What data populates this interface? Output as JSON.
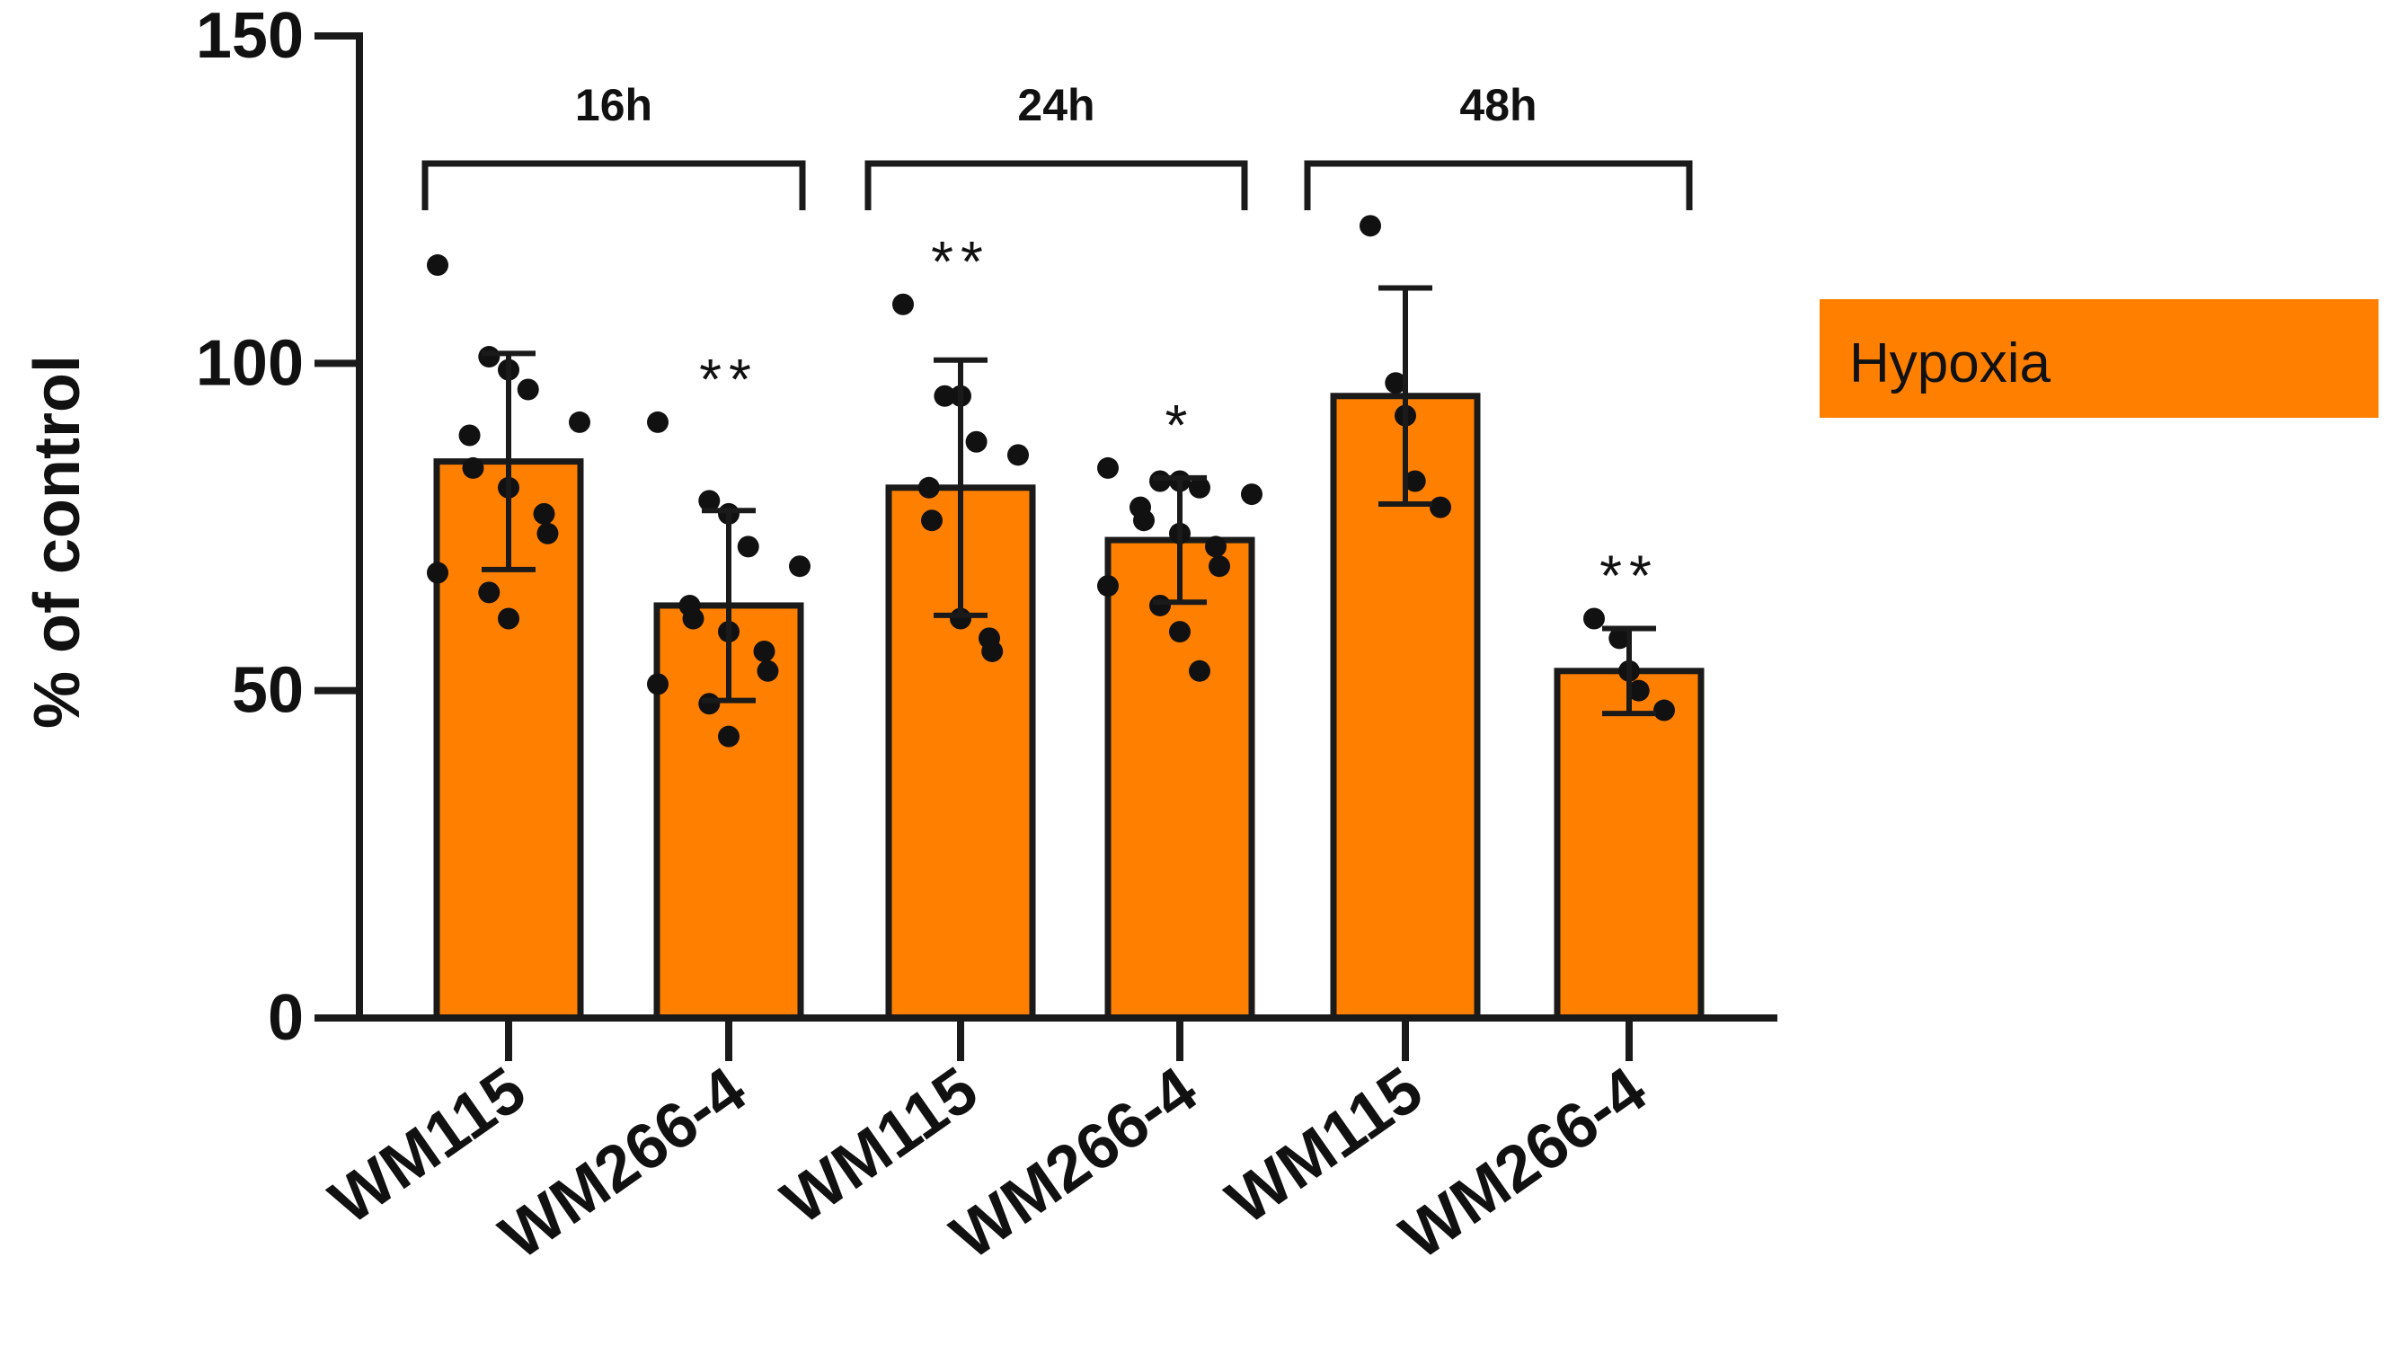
{
  "chart_data": {
    "type": "bar",
    "title": "",
    "xlabel": "",
    "ylabel": "% of control",
    "ylim": [
      0,
      150
    ],
    "yticks": [
      0,
      50,
      100,
      150
    ],
    "yticklabels": [
      "0",
      "50",
      "100",
      "150"
    ],
    "grid": false,
    "categories": [
      "WM115",
      "WM266-4",
      "WM115",
      "WM266-4",
      "WM115",
      "WM266-4"
    ],
    "groups": [
      {
        "label": "16h",
        "members": [
          0,
          1
        ]
      },
      {
        "label": "24h",
        "members": [
          2,
          3
        ]
      },
      {
        "label": "48h",
        "members": [
          4,
          5
        ]
      }
    ],
    "series": [
      {
        "name": "Hypoxia",
        "color": "#FF8000",
        "values": [
          85,
          63,
          81,
          73,
          95,
          53
        ],
        "errors": [
          16.5,
          14.5,
          19.5,
          9.5,
          16.5,
          6.5
        ],
        "significance": [
          "",
          "**",
          "**",
          "*",
          "",
          "**"
        ],
        "points": [
          [
            115,
            101,
            99,
            96,
            91,
            89,
            84,
            81,
            77,
            74,
            68,
            65,
            61
          ],
          [
            91,
            79,
            77,
            72,
            69,
            63,
            61,
            59,
            56,
            53,
            51,
            48,
            43
          ],
          [
            109,
            95,
            95,
            88,
            86,
            81,
            76,
            61,
            58,
            56
          ],
          [
            84,
            82,
            82,
            81,
            80,
            78,
            76,
            74,
            72,
            69,
            66,
            63,
            59,
            53
          ],
          [
            121,
            97,
            92,
            82,
            78
          ],
          [
            61,
            58,
            53,
            50,
            47
          ]
        ]
      }
    ],
    "legend": {
      "label": "Hypoxia",
      "placement": "right"
    }
  }
}
